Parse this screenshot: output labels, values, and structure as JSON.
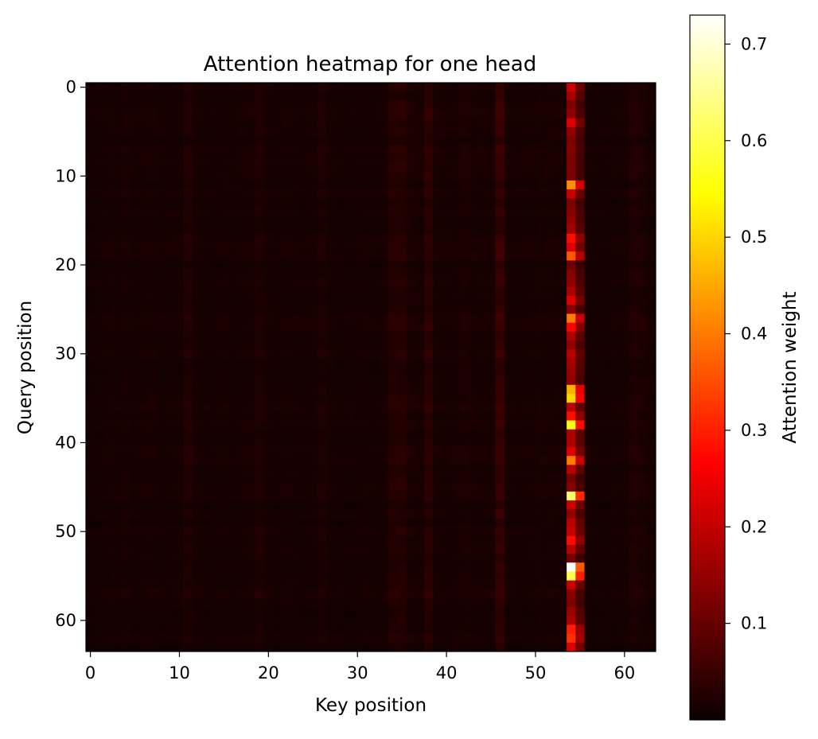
{
  "chart_data": {
    "type": "heatmap",
    "title": "Attention heatmap for one head",
    "xlabel": "Key position",
    "ylabel": "Query position",
    "colorbar_label": "Attention weight",
    "colormap": "hot",
    "size": 64,
    "xlim": [
      -0.5,
      63.5
    ],
    "ylim": [
      63.5,
      -0.5
    ],
    "x_ticks": [
      0,
      10,
      20,
      30,
      40,
      50,
      60
    ],
    "y_ticks": [
      0,
      10,
      20,
      30,
      40,
      50,
      60
    ],
    "color_range": [
      0.0,
      0.73
    ],
    "colorbar_ticks": [
      0.1,
      0.2,
      0.3,
      0.4,
      0.5,
      0.6,
      0.7
    ],
    "grid": false,
    "column_profile": {
      "0": 0.7,
      "1": 0.8,
      "2": 0.9,
      "3": 0.8,
      "4": 1.0,
      "5": 0.8,
      "6": 0.9,
      "7": 1.0,
      "8": 0.8,
      "9": 0.9,
      "10": 0.9,
      "11": 1.5,
      "12": 0.9,
      "13": 0.8,
      "14": 0.8,
      "15": 0.9,
      "16": 0.8,
      "17": 0.9,
      "18": 1.0,
      "19": 1.4,
      "20": 0.9,
      "21": 0.8,
      "22": 0.9,
      "23": 0.9,
      "24": 0.8,
      "25": 0.9,
      "26": 1.3,
      "27": 0.9,
      "28": 0.8,
      "29": 0.8,
      "30": 0.8,
      "31": 0.9,
      "32": 0.8,
      "33": 0.9,
      "34": 1.8,
      "35": 1.9,
      "36": 1.2,
      "37": 1.0,
      "38": 2.2,
      "39": 1.0,
      "40": 0.9,
      "41": 1.0,
      "42": 1.2,
      "43": 1.0,
      "44": 1.0,
      "45": 1.0,
      "46": 3.0,
      "47": 0.9,
      "48": 0.9,
      "49": 0.9,
      "50": 0.9,
      "51": 1.0,
      "52": 1.0,
      "53": 1.0,
      "54": 6.0,
      "55": 3.6,
      "56": 0.9,
      "57": 0.8,
      "58": 0.8,
      "59": 0.8,
      "60": 0.9,
      "61": 1.5,
      "62": 1.3,
      "63": 0.8
    },
    "column_54_values": [
      0.2,
      0.16,
      0.12,
      0.14,
      0.22,
      0.14,
      0.12,
      0.13,
      0.12,
      0.12,
      0.12,
      0.42,
      0.2,
      0.12,
      0.13,
      0.14,
      0.16,
      0.28,
      0.22,
      0.36,
      0.1,
      0.13,
      0.14,
      0.17,
      0.22,
      0.13,
      0.4,
      0.26,
      0.17,
      0.14,
      0.18,
      0.16,
      0.15,
      0.14,
      0.46,
      0.5,
      0.18,
      0.28,
      0.56,
      0.17,
      0.17,
      0.22,
      0.4,
      0.18,
      0.11,
      0.13,
      0.62,
      0.2,
      0.14,
      0.18,
      0.2,
      0.28,
      0.18,
      0.11,
      0.73,
      0.6,
      0.2,
      0.13,
      0.12,
      0.15,
      0.17,
      0.3,
      0.32,
      0.22
    ]
  }
}
